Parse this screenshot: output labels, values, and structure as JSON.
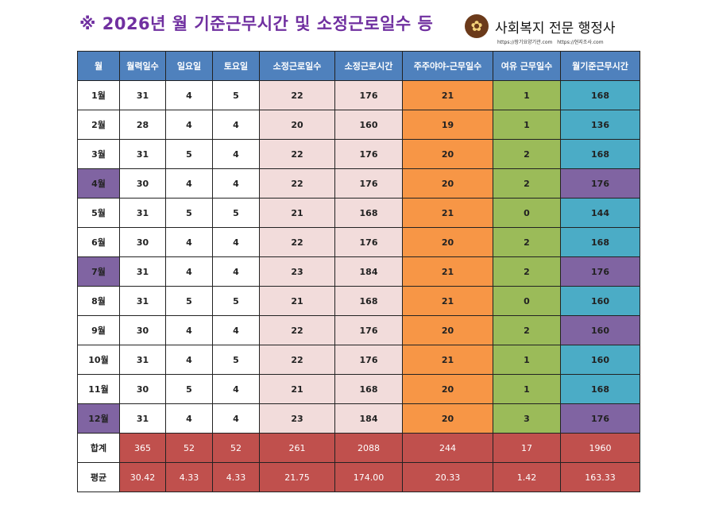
{
  "title": "※ 2026년 월 기준근무시간 및 소정근로일수 등",
  "logo": {
    "name": "사회복지 전문 행정사",
    "urls": "https://장기요양기관.com  https://현지조사.com"
  },
  "colors": {
    "header": "#4f81bd",
    "pink": "#f2dcdb",
    "orange": "#f79646",
    "green": "#9bbb59",
    "teal": "#4bacc6",
    "purple": "#8064a2",
    "red": "#c0504d"
  },
  "headers": [
    "월",
    "월력일수",
    "일요일",
    "토요일",
    "소정근로일수",
    "소정근로시간",
    "주주야야-근무일수",
    "여유 근무일수",
    "월기준근무시간"
  ],
  "rows": [
    {
      "cells": [
        "1월",
        "31",
        "4",
        "5",
        "22",
        "176",
        "21",
        "1",
        "168"
      ],
      "month_highlight": false,
      "last_highlight": false
    },
    {
      "cells": [
        "2월",
        "28",
        "4",
        "4",
        "20",
        "160",
        "19",
        "1",
        "136"
      ],
      "month_highlight": false,
      "last_highlight": false
    },
    {
      "cells": [
        "3월",
        "31",
        "5",
        "4",
        "22",
        "176",
        "20",
        "2",
        "168"
      ],
      "month_highlight": false,
      "last_highlight": false
    },
    {
      "cells": [
        "4월",
        "30",
        "4",
        "4",
        "22",
        "176",
        "20",
        "2",
        "176"
      ],
      "month_highlight": true,
      "last_highlight": true
    },
    {
      "cells": [
        "5월",
        "31",
        "5",
        "5",
        "21",
        "168",
        "21",
        "0",
        "144"
      ],
      "month_highlight": false,
      "last_highlight": false
    },
    {
      "cells": [
        "6월",
        "30",
        "4",
        "4",
        "22",
        "176",
        "20",
        "2",
        "168"
      ],
      "month_highlight": false,
      "last_highlight": false
    },
    {
      "cells": [
        "7월",
        "31",
        "4",
        "4",
        "23",
        "184",
        "21",
        "2",
        "176"
      ],
      "month_highlight": true,
      "last_highlight": true
    },
    {
      "cells": [
        "8월",
        "31",
        "5",
        "5",
        "21",
        "168",
        "21",
        "0",
        "160"
      ],
      "month_highlight": false,
      "last_highlight": false
    },
    {
      "cells": [
        "9월",
        "30",
        "4",
        "4",
        "22",
        "176",
        "20",
        "2",
        "160"
      ],
      "month_highlight": false,
      "last_highlight": true
    },
    {
      "cells": [
        "10월",
        "31",
        "4",
        "5",
        "22",
        "176",
        "21",
        "1",
        "160"
      ],
      "month_highlight": false,
      "last_highlight": false
    },
    {
      "cells": [
        "11월",
        "30",
        "5",
        "4",
        "21",
        "168",
        "20",
        "1",
        "168"
      ],
      "month_highlight": false,
      "last_highlight": false
    },
    {
      "cells": [
        "12월",
        "31",
        "4",
        "4",
        "23",
        "184",
        "20",
        "3",
        "176"
      ],
      "month_highlight": true,
      "last_highlight": true
    }
  ],
  "summary": [
    {
      "cells": [
        "합계",
        "365",
        "52",
        "52",
        "261",
        "2088",
        "244",
        "17",
        "1960"
      ]
    },
    {
      "cells": [
        "평균",
        "30.42",
        "4.33",
        "4.33",
        "21.75",
        "174.00",
        "20.33",
        "1.42",
        "163.33"
      ]
    }
  ]
}
